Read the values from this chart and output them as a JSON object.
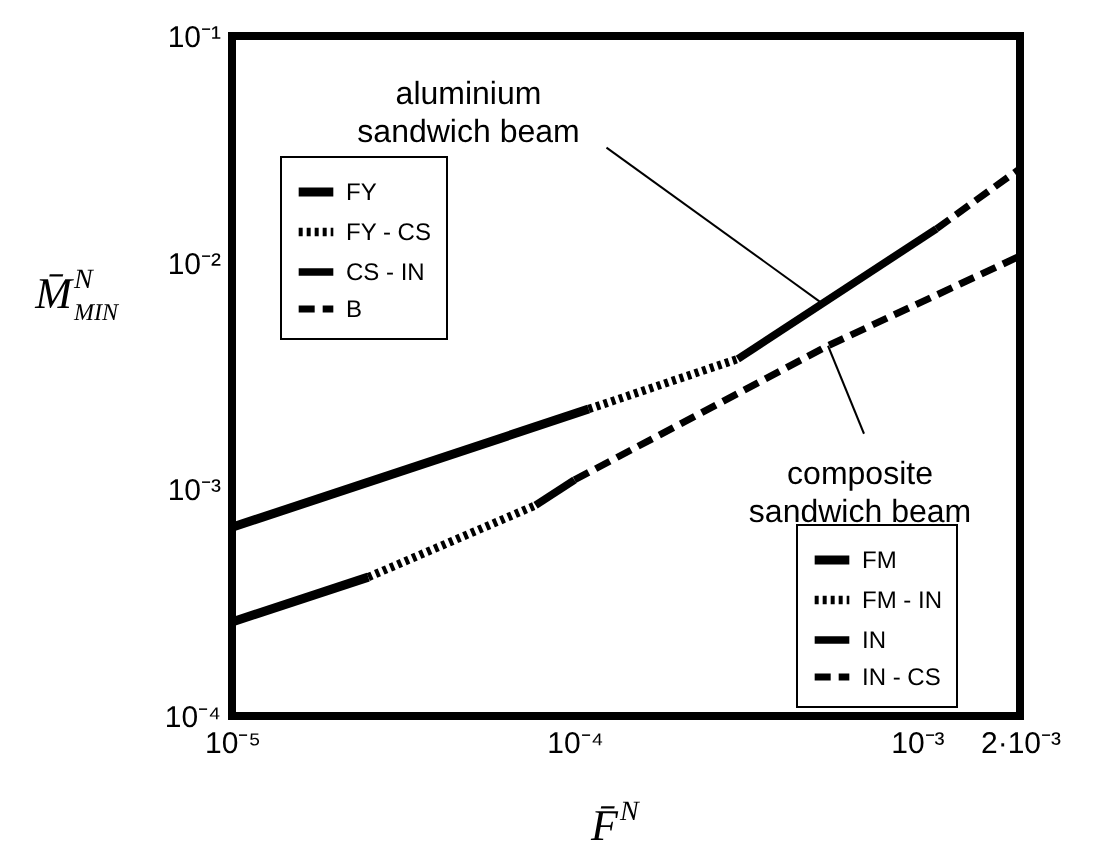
{
  "chart_data": {
    "type": "line",
    "log": "xy",
    "xlabel": "F̄$^{N}$",
    "ylabel": "M̄$^{N}$$_{MIN}$",
    "xlim": [
      1e-05,
      0.002
    ],
    "ylim": [
      0.0001,
      0.1
    ],
    "xticks": [
      {
        "value": 1e-05,
        "label": "10⁻⁵"
      },
      {
        "value": 0.0001,
        "label": "10⁻⁴"
      },
      {
        "value": 0.001,
        "label": "10⁻³"
      },
      {
        "value": 0.002,
        "label": "2·10⁻³"
      }
    ],
    "yticks": [
      {
        "value": 0.0001,
        "label": "10⁻⁴"
      },
      {
        "value": 0.001,
        "label": "10⁻³"
      },
      {
        "value": 0.01,
        "label": "10⁻²"
      },
      {
        "value": 0.1,
        "label": "10⁻¹"
      }
    ],
    "grid": false,
    "marker": "none",
    "legend": [
      "top left",
      "bottom right"
    ],
    "series": [
      {
        "name": "FY",
        "color": "#000000",
        "line_style": "solid",
        "x": [
          1e-05,
          0.00011
        ],
        "values": [
          0.00068,
          0.00226
        ]
      },
      {
        "name": "FY - CS",
        "color": "#000000",
        "line_style": "dotted",
        "x": [
          0.00011,
          0.0003
        ],
        "values": [
          0.00226,
          0.00376
        ]
      },
      {
        "name": "CS - IN",
        "color": "#000000",
        "line_style": "solid",
        "x": [
          0.0003,
          0.00114
        ],
        "values": [
          0.00376,
          0.0141
        ]
      },
      {
        "name": "B",
        "color": "#000000",
        "line_style": "dashed",
        "x": [
          0.00114,
          0.002
        ],
        "values": [
          0.0141,
          0.026
        ]
      },
      {
        "name": "FM",
        "color": "#000000",
        "line_style": "solid",
        "x": [
          1e-05,
          2.5e-05
        ],
        "values": [
          0.00026,
          0.00041
        ]
      },
      {
        "name": "FM - IN",
        "color": "#000000",
        "line_style": "dotted",
        "x": [
          2.5e-05,
          7.7e-05
        ],
        "values": [
          0.00041,
          0.00085
        ]
      },
      {
        "name": "IN",
        "color": "#000000",
        "line_style": "solid",
        "x": [
          7.7e-05,
          0.0001
        ],
        "values": [
          0.00085,
          0.0011
        ]
      },
      {
        "name": "IN - CS",
        "color": "#000000",
        "line_style": "dashed",
        "x": [
          0.0001,
          0.00055,
          0.002
        ],
        "values": [
          0.0011,
          0.0043,
          0.0107
        ]
      }
    ],
    "annotations": [
      {
        "text": "aluminium\nsandwich beam",
        "x": 0.00053,
        "y": 0.0066
      },
      {
        "text": "composite\nsandwich beam",
        "x": 0.00055,
        "y": 0.0043
      }
    ]
  }
}
